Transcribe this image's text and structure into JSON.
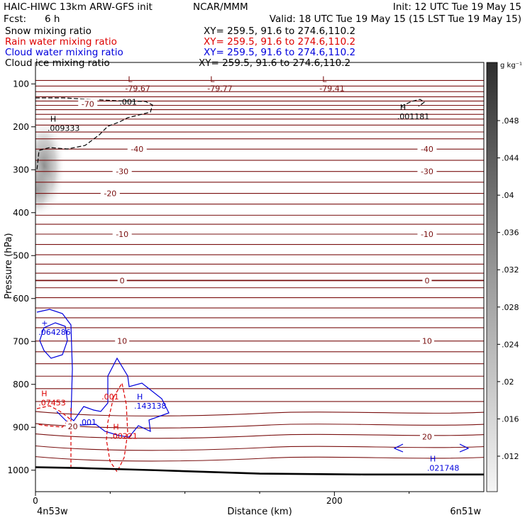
{
  "header": {
    "line1_left": "HAIC-HIWC 13km ARW-GFS init",
    "line1_mid": "NCAR/MMM",
    "line1_right": "Init: 12 UTC Tue 19 May 15",
    "line2_left": "Fcst:",
    "line2_fcst": "6 h",
    "line2_right": "Valid: 18 UTC Tue 19 May 15 (15 LST Tue 19 May 15)"
  },
  "fields": [
    {
      "name": "Snow mixing ratio",
      "xy": "XY= 259.5, 91.6 to 274.6,110.2",
      "color": "#000000"
    },
    {
      "name": "Rain water mixing ratio",
      "xy": "XY= 259.5, 91.6 to 274.6,110.2",
      "color": "#dd0000"
    },
    {
      "name": "Cloud water mixing ratio",
      "xy": "XY= 259.5, 91.6 to 274.6,110.2",
      "color": "#0000dd"
    },
    {
      "name": "Cloud ice mixing ratio",
      "xy": "XY= 259.5, 91.6 to 274.6,110.2",
      "color": "#000000"
    }
  ],
  "colors": {
    "isotherm": "#7a1010",
    "rain": "#dd0000",
    "cloud_water": "#0000dd",
    "ground": "#000000"
  },
  "chart_data": {
    "type": "contour cross-section",
    "xlabel": "Distance (km)",
    "ylabel": "Pressure (hPa)",
    "x_ticks": [
      "0",
      "200"
    ],
    "y_ticks": [
      "100",
      "200",
      "300",
      "400",
      "500",
      "600",
      "700",
      "800",
      "900",
      "1000"
    ],
    "xlim": [
      0,
      300
    ],
    "ylim": [
      1050,
      50
    ],
    "left_endpoint": "4n53w",
    "right_endpoint": "6n51w",
    "colorbar": {
      "unit": "g kg⁻¹",
      "ticks": [
        ".048",
        ".044",
        ".04",
        ".036",
        ".032",
        ".028",
        ".024",
        ".02",
        ".016",
        ".012"
      ]
    },
    "isotherm_labels": [
      {
        "label": "-70",
        "x": 35,
        "p": 147
      },
      {
        "label": "-40",
        "x": 68,
        "p": 252
      },
      {
        "label": "-40",
        "x": 262,
        "p": 252
      },
      {
        "label": "-30",
        "x": 58,
        "p": 304
      },
      {
        "label": "-30",
        "x": 262,
        "p": 304
      },
      {
        "label": "-20",
        "x": 50,
        "p": 355
      },
      {
        "label": "-10",
        "x": 58,
        "p": 450
      },
      {
        "label": "-10",
        "x": 262,
        "p": 450
      },
      {
        "label": "0",
        "x": 58,
        "p": 558
      },
      {
        "label": "0",
        "x": 262,
        "p": 558
      },
      {
        "label": "10",
        "x": 58,
        "p": 699
      },
      {
        "label": "10",
        "x": 262,
        "p": 699
      },
      {
        "label": "20",
        "x": 262,
        "p": 922
      },
      {
        "label": "20",
        "x": 25,
        "p": 898
      }
    ],
    "extrema_labels": [
      {
        "mark": "L",
        "value": "-79.67",
        "x": 60,
        "p": 100,
        "color": "#7a1010"
      },
      {
        "mark": "L",
        "value": "-79.77",
        "x": 115,
        "p": 100,
        "color": "#7a1010"
      },
      {
        "mark": "L",
        "value": "-79.41",
        "x": 190,
        "p": 100,
        "color": "#7a1010"
      },
      {
        "mark": "H",
        "value": ".001181",
        "x": 242,
        "p": 166,
        "color": "#000000"
      },
      {
        "mark": "H",
        "value": ".009333",
        "x": 8,
        "p": 193,
        "color": "#000000"
      },
      {
        "mark": "+",
        "value": ".064286",
        "x": 2,
        "p": 668,
        "color": "#0000dd"
      },
      {
        "mark": "H",
        "value": ".07453",
        "x": 2,
        "p": 833,
        "color": "#dd0000"
      },
      {
        "mark": "H",
        "value": ".143138",
        "x": 66,
        "p": 840,
        "color": "#0000dd"
      },
      {
        "mark": "H",
        "value": ".00221",
        "x": 50,
        "p": 910,
        "color": "#dd0000"
      },
      {
        "mark": "H",
        "value": ".021748",
        "x": 262,
        "p": 985,
        "color": "#0000dd"
      }
    ],
    "contour_labels": [
      {
        "label": ".001",
        "x": 62,
        "p": 148,
        "color": "#000000"
      },
      {
        "label": ".001",
        "x": 50,
        "p": 835,
        "color": "#dd0000"
      },
      {
        "label": ".001",
        "x": 35,
        "p": 895,
        "color": "#0000dd"
      }
    ]
  }
}
